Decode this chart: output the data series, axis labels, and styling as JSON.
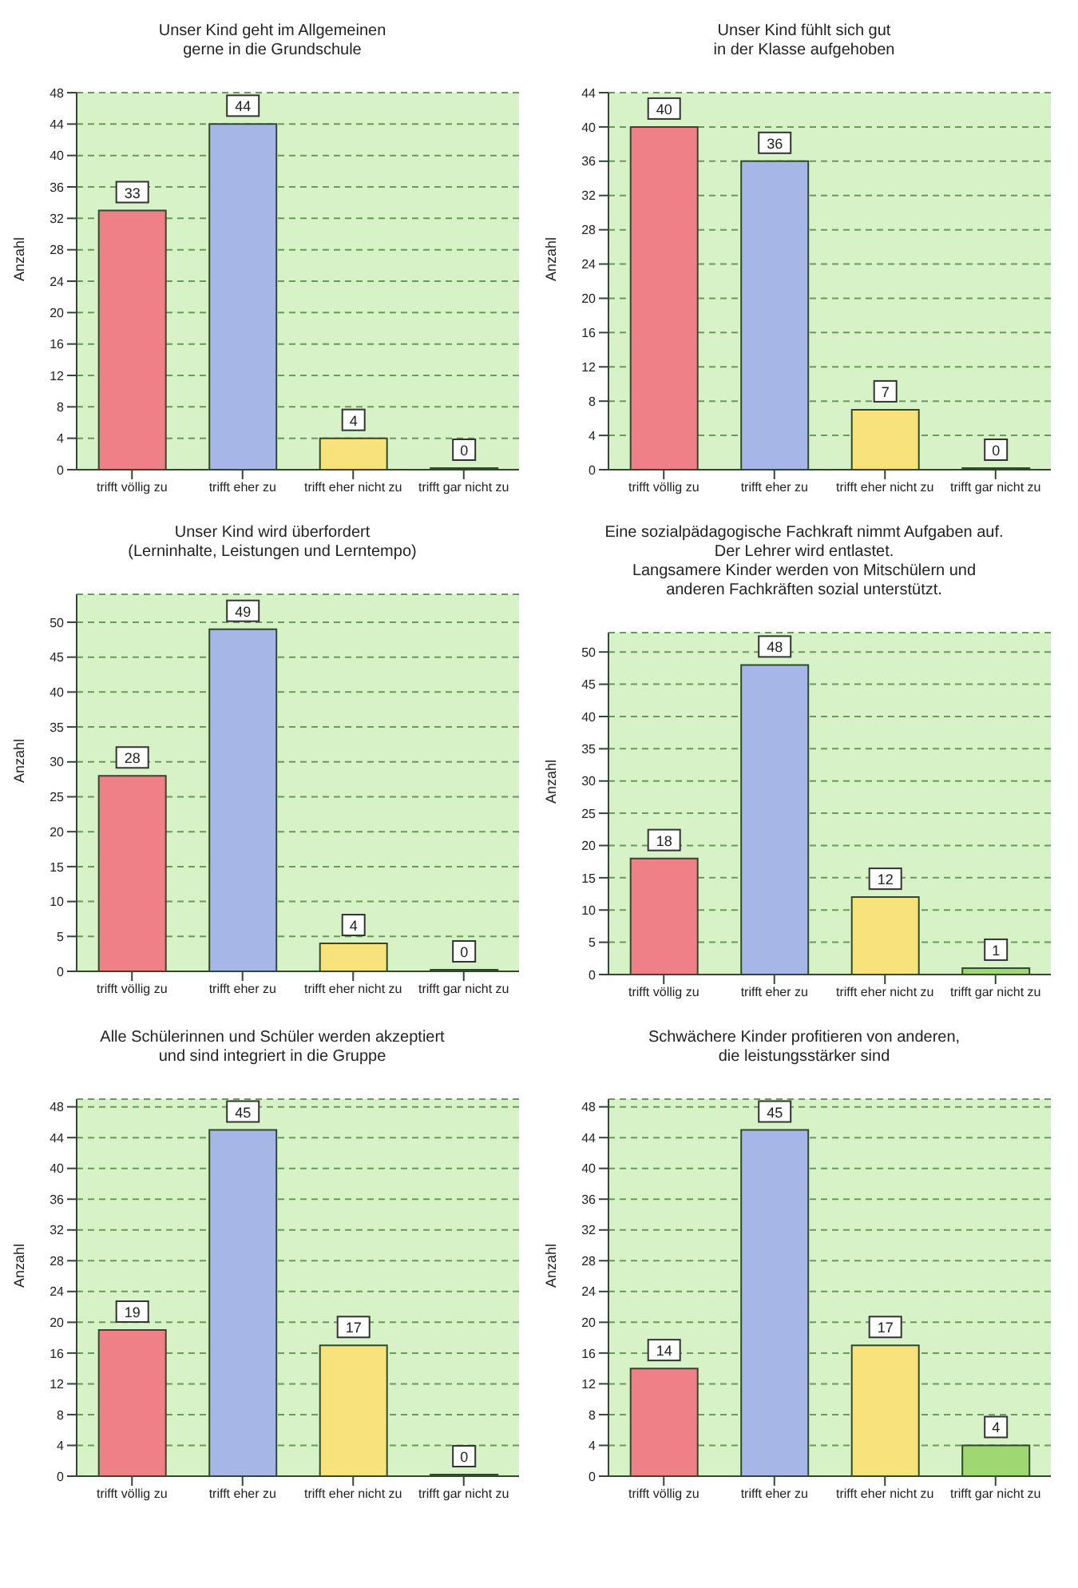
{
  "chart_data": [
    {
      "type": "bar",
      "title": "Unser Kind geht im Allgemeinen\ngerne in die Grundschule",
      "ylabel": "Anzahl",
      "categories": [
        "trifft völlig zu",
        "trifft eher zu",
        "trifft eher nicht zu",
        "trifft gar nicht zu"
      ],
      "values": [
        33,
        44,
        4,
        0
      ],
      "colors": [
        "#ef8088",
        "#a6b6e6",
        "#f7e27c",
        "#9fd872"
      ],
      "ylim": [
        0,
        48
      ],
      "yticks": [
        0,
        4,
        8,
        12,
        16,
        20,
        24,
        28,
        32,
        36,
        40,
        44,
        48
      ],
      "grid": "y",
      "data_labels": true
    },
    {
      "type": "bar",
      "title": "Unser Kind fühlt sich gut\nin der Klasse aufgehoben",
      "ylabel": "Anzahl",
      "categories": [
        "trifft völlig zu",
        "trifft eher zu",
        "trifft eher nicht zu",
        "trifft gar nicht zu"
      ],
      "values": [
        40,
        36,
        7,
        0
      ],
      "colors": [
        "#ef8088",
        "#a6b6e6",
        "#f7e27c",
        "#9fd872"
      ],
      "ylim": [
        0,
        44
      ],
      "yticks": [
        0,
        4,
        8,
        12,
        16,
        20,
        24,
        28,
        32,
        36,
        40,
        44
      ],
      "grid": "y",
      "data_labels": true
    },
    {
      "type": "bar",
      "title": "Unser Kind wird überfordert\n(Lerninhalte, Leistungen und Lerntempo)",
      "ylabel": "Anzahl",
      "categories": [
        "trifft völlig zu",
        "trifft eher zu",
        "trifft eher nicht zu",
        "trifft gar nicht zu"
      ],
      "values": [
        28,
        49,
        4,
        0
      ],
      "colors": [
        "#ef8088",
        "#a6b6e6",
        "#f7e27c",
        "#9fd872"
      ],
      "ylim": [
        0,
        54
      ],
      "yticks": [
        0,
        5,
        10,
        15,
        20,
        25,
        30,
        35,
        40,
        45,
        50
      ],
      "grid": "y",
      "data_labels": true
    },
    {
      "type": "bar",
      "title": "Eine sozialpädagogische Fachkraft nimmt Aufgaben auf.\nDer Lehrer wird entlastet.\nLangsamere Kinder werden von Mitschülern und\nanderen Fachkräften sozial unterstützt.",
      "ylabel": "Anzahl",
      "categories": [
        "trifft völlig zu",
        "trifft eher zu",
        "trifft eher nicht zu",
        "trifft gar nicht zu"
      ],
      "values": [
        18,
        48,
        12,
        1
      ],
      "colors": [
        "#ef8088",
        "#a6b6e6",
        "#f7e27c",
        "#9fd872"
      ],
      "ylim": [
        0,
        53
      ],
      "yticks": [
        0,
        5,
        10,
        15,
        20,
        25,
        30,
        35,
        40,
        45,
        50
      ],
      "grid": "y",
      "data_labels": true
    },
    {
      "type": "bar",
      "title": "Alle Schülerinnen und Schüler werden akzeptiert\nund sind integriert in die Gruppe",
      "ylabel": "Anzahl",
      "categories": [
        "trifft völlig zu",
        "trifft eher zu",
        "trifft eher nicht zu",
        "trifft gar nicht zu"
      ],
      "values": [
        19,
        45,
        17,
        0
      ],
      "colors": [
        "#ef8088",
        "#a6b6e6",
        "#f7e27c",
        "#9fd872"
      ],
      "ylim": [
        0,
        49
      ],
      "yticks": [
        0,
        4,
        8,
        12,
        16,
        20,
        24,
        28,
        32,
        36,
        40,
        44,
        48
      ],
      "grid": "y",
      "data_labels": true
    },
    {
      "type": "bar",
      "title": "Schwächere Kinder profitieren von anderen,\ndie leistungsstärker sind",
      "ylabel": "Anzahl",
      "categories": [
        "trifft völlig zu",
        "trifft eher zu",
        "trifft eher nicht zu",
        "trifft gar nicht zu"
      ],
      "values": [
        14,
        45,
        17,
        4
      ],
      "colors": [
        "#ef8088",
        "#a6b6e6",
        "#f7e27c",
        "#9fd872"
      ],
      "ylim": [
        0,
        49
      ],
      "yticks": [
        0,
        4,
        8,
        12,
        16,
        20,
        24,
        28,
        32,
        36,
        40,
        44,
        48
      ],
      "grid": "y",
      "data_labels": true
    }
  ]
}
